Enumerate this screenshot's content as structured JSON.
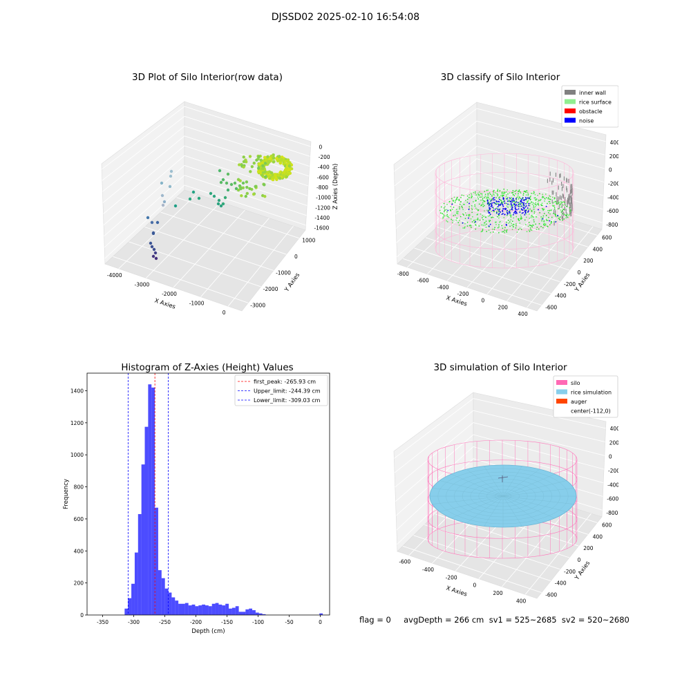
{
  "figure": {
    "suptitle": "DJSSD02 2025-02-10 16:54:08",
    "footer": "flag = 0     avgDepth = 266 cm  sv1 = 525~2685  sv2 = 520~2680"
  },
  "panels": {
    "raw": {
      "title": "3D Plot of Silo Interior(row data)",
      "xlabel": "X Axies",
      "ylabel": "Y Axies",
      "zlabel": "Z Axies (Depth)",
      "xticks": [
        "-4000",
        "-3000",
        "-2000",
        "-1000",
        "0"
      ],
      "yticks": [
        "1000",
        "0",
        "-1000",
        "-2000",
        "-3000"
      ],
      "zticks": [
        "0",
        "-200",
        "-400",
        "-600",
        "-800",
        "-1000",
        "-1200",
        "-1400",
        "-1600"
      ]
    },
    "classify": {
      "title": "3D classify of Silo Interior",
      "xlabel": "X Axies",
      "ylabel": "Y Axies",
      "zlabel": "Z Axies (Depth)",
      "xticks": [
        "-800",
        "-600",
        "-400",
        "-200",
        "0",
        "200",
        "400"
      ],
      "yticks": [
        "600",
        "400",
        "200",
        "0",
        "-200",
        "-400",
        "-600"
      ],
      "zticks": [
        "400",
        "200",
        "0",
        "-200",
        "-400",
        "-600",
        "-800"
      ],
      "legend": [
        {
          "label": "inner wall",
          "color": "#808080"
        },
        {
          "label": "rice surface",
          "color": "#90ee90"
        },
        {
          "label": "obstacle",
          "color": "#ff0000"
        },
        {
          "label": "noise",
          "color": "#0000ff"
        }
      ]
    },
    "simulation": {
      "title": "3D simulation of Silo Interior",
      "xlabel": "X Axies",
      "ylabel": "Y Axies",
      "zlabel": "Z Axies (Depth)",
      "xticks": [
        "-600",
        "-400",
        "-200",
        "0",
        "200",
        "400"
      ],
      "yticks": [
        "600",
        "400",
        "200",
        "0",
        "-200",
        "-400",
        "-600"
      ],
      "zticks": [
        "400",
        "200",
        "0",
        "-200",
        "-400",
        "-600",
        "-800"
      ],
      "legend": [
        {
          "label": "silo",
          "color": "#ff69b4"
        },
        {
          "label": "rice simulation",
          "color": "#87ceeb"
        },
        {
          "label": "auger",
          "color": "#ff4500"
        },
        {
          "label": "center(-112,0)",
          "color": "#ffffff"
        }
      ]
    }
  },
  "chart_data": {
    "type": "bar",
    "title": "Histogram of Z-Axies (Height) Values",
    "xlabel": "Depth (cm)",
    "ylabel": "Frequency",
    "xlim": [
      -375,
      15
    ],
    "ylim": [
      0,
      1510
    ],
    "xticks": [
      -350,
      -300,
      -250,
      -200,
      -150,
      -100,
      -50,
      0
    ],
    "yticks": [
      0,
      200,
      400,
      600,
      800,
      1000,
      1200,
      1400
    ],
    "bar_color": "#0000ff",
    "bin_width": 5.4,
    "bins_start": [
      -314.6,
      -309.2,
      -303.8,
      -298.4,
      -293.0,
      -287.6,
      -282.2,
      -276.8,
      -271.4,
      -266.0,
      -260.6,
      -255.2,
      -249.8,
      -244.4,
      -239.0,
      -233.6,
      -228.2,
      -222.8,
      -217.4,
      -212.0,
      -206.6,
      -201.2,
      -195.8,
      -190.4,
      -185.0,
      -179.6,
      -174.2,
      -168.8,
      -163.4,
      -158.0,
      -152.6,
      -147.2,
      -141.8,
      -136.4,
      -131.0,
      -125.6,
      -120.2,
      -114.8,
      -109.4,
      -104.0,
      -98.6,
      -93.2,
      -87.8,
      -82.4,
      -77.0,
      -71.6,
      -66.2,
      -60.8,
      -55.4,
      -50.0,
      -44.6,
      -39.2,
      -33.8,
      -28.4,
      -23.0,
      -17.6,
      -12.2,
      -6.8,
      -1.4
    ],
    "values": [
      40,
      105,
      195,
      390,
      630,
      940,
      1175,
      1440,
      1420,
      670,
      280,
      230,
      165,
      140,
      110,
      90,
      70,
      70,
      75,
      60,
      65,
      55,
      60,
      65,
      60,
      55,
      70,
      75,
      65,
      60,
      70,
      40,
      45,
      55,
      20,
      20,
      35,
      40,
      30,
      15,
      10,
      5,
      0,
      0,
      0,
      0,
      0,
      0,
      0,
      0,
      0,
      0,
      0,
      0,
      0,
      0,
      0,
      0,
      10
    ],
    "vlines": [
      {
        "label": "first_peak: -265.93 cm",
        "x": -265.93,
        "color": "#ff0000"
      },
      {
        "label": "Upper_limit: -244.39 cm",
        "x": -244.39,
        "color": "#0000ff"
      },
      {
        "label": "Lower_limit: -309.03 cm",
        "x": -309.03,
        "color": "#0000ff"
      }
    ],
    "legend_position": "top-right"
  }
}
